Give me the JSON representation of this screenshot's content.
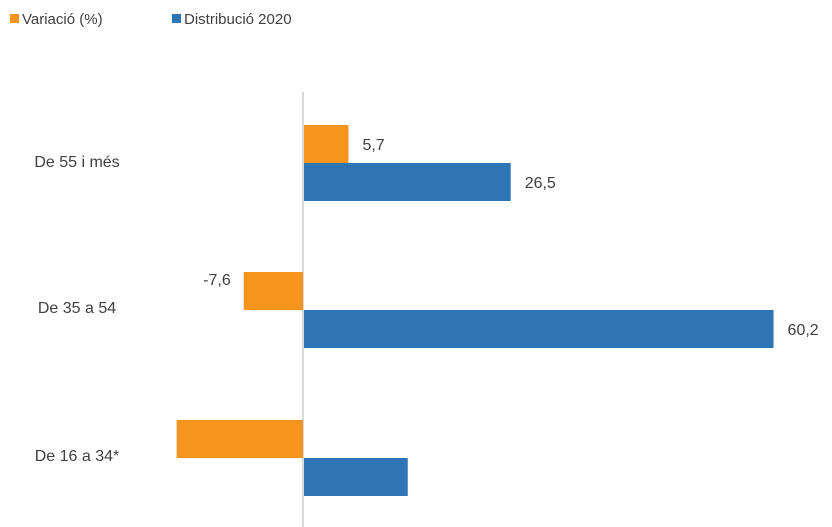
{
  "chart_data": {
    "type": "bar",
    "orientation": "horizontal",
    "categories": [
      "De 55 i més",
      "De 35 a 54",
      "De 16 a 34*"
    ],
    "series": [
      {
        "name": "Variació (%)",
        "color": "#F7941D",
        "values": [
          5.7,
          -7.6,
          -16.2
        ],
        "labels": [
          "5,7",
          "-7,6",
          ""
        ]
      },
      {
        "name": "Distribució 2020",
        "color": "#2E75B6",
        "values": [
          26.5,
          60.2,
          13.3
        ],
        "labels": [
          "26,5",
          "60,2",
          ""
        ]
      }
    ],
    "legend_position": "top-left",
    "grid": false,
    "axis_color": "#D9D9D9"
  }
}
